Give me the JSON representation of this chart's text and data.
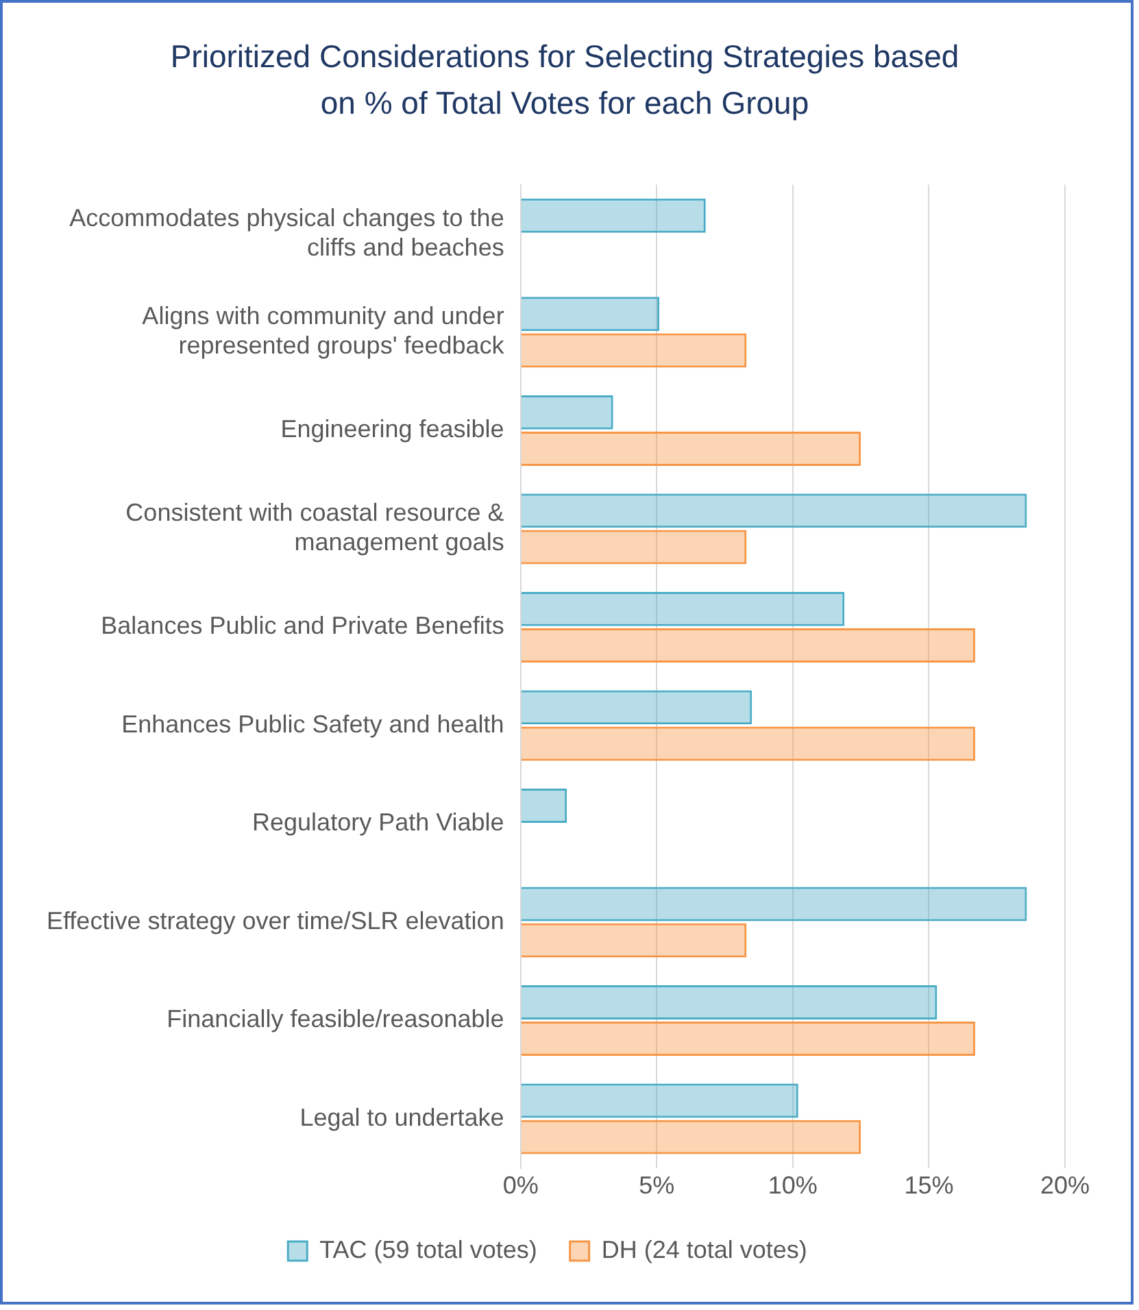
{
  "chart_data": {
    "type": "bar",
    "orientation": "horizontal",
    "title": "Prioritized Considerations for Selecting Strategies based on % of Total Votes for each Group",
    "categories": [
      "Accommodates physical changes to the cliffs and beaches",
      "Aligns with community and under represented groups' feedback",
      "Engineering feasible",
      "Consistent with coastal resource & management goals",
      "Balances Public and Private Benefits",
      "Enhances Public Safety and health",
      "Regulatory Path Viable",
      "Effective strategy over time/SLR elevation",
      "Financially feasible/reasonable",
      "Legal to undertake"
    ],
    "series": [
      {
        "name": "TAC (59 total votes)",
        "color": "#4bacc6",
        "values": [
          6.8,
          5.1,
          3.4,
          18.6,
          11.9,
          8.5,
          1.7,
          18.6,
          15.3,
          10.2
        ]
      },
      {
        "name": "DH (24 total votes)",
        "color": "#f79646",
        "values": [
          0,
          8.3,
          12.5,
          8.3,
          16.7,
          16.7,
          0,
          8.3,
          16.7,
          12.5
        ]
      }
    ],
    "xlim": [
      0,
      20
    ],
    "xticks": [
      {
        "value": 0,
        "label": "0%"
      },
      {
        "value": 5,
        "label": "5%"
      },
      {
        "value": 10,
        "label": "10%"
      },
      {
        "value": 15,
        "label": "15%"
      },
      {
        "value": 20,
        "label": "20%"
      }
    ],
    "grid": "x",
    "legend": "bottom"
  }
}
